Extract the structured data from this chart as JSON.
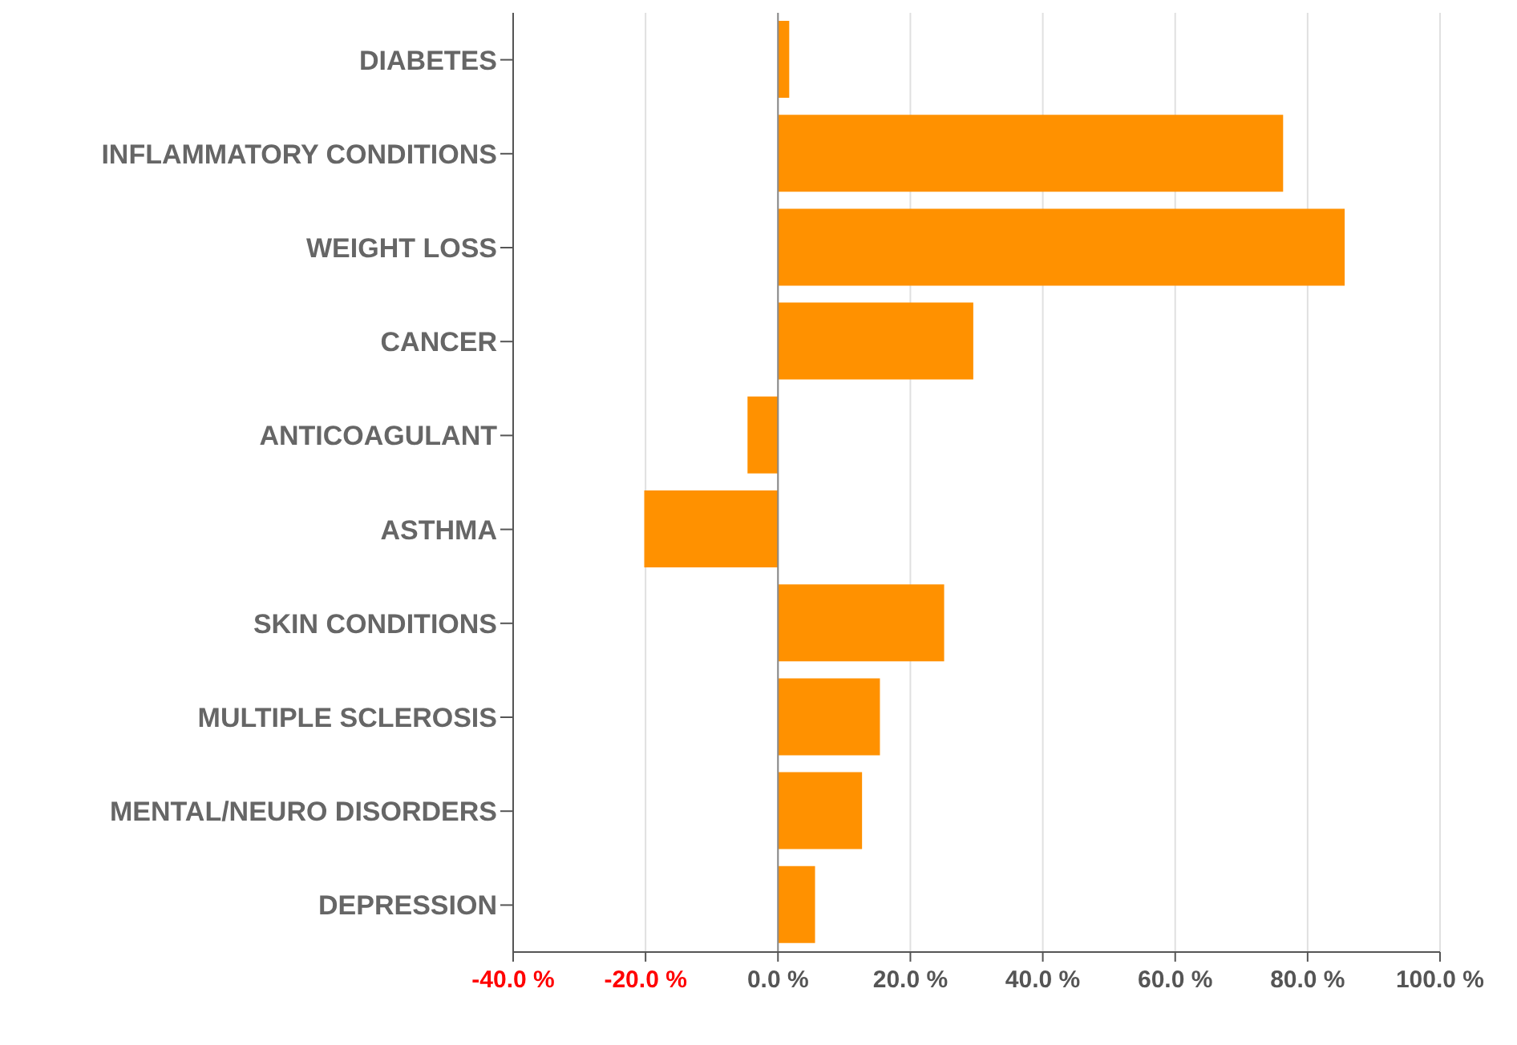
{
  "chart_data": {
    "type": "bar",
    "orientation": "horizontal",
    "categories": [
      "DIABETES",
      "INFLAMMATORY CONDITIONS",
      "WEIGHT LOSS",
      "CANCER",
      "ANTICOAGULANT",
      "ASTHMA",
      "SKIN CONDITIONS",
      "MULTIPLE SCLEROSIS",
      "MENTAL/NEURO DISORDERS",
      "DEPRESSION"
    ],
    "values": [
      1.7,
      76.3,
      85.6,
      29.5,
      -4.6,
      -20.2,
      25.1,
      15.4,
      12.7,
      5.6
    ],
    "color": "#ff9100",
    "xlim": [
      -40,
      100
    ],
    "xticks": [
      {
        "value": -40,
        "label": "-40.0 %"
      },
      {
        "value": -20,
        "label": "-20.0 %"
      },
      {
        "value": 0,
        "label": "0.0 %"
      },
      {
        "value": 20,
        "label": "20.0 %"
      },
      {
        "value": 40,
        "label": "40.0 %"
      },
      {
        "value": 60,
        "label": "60.0 %"
      },
      {
        "value": 80,
        "label": "80.0 %"
      },
      {
        "value": 100,
        "label": "100.0 %"
      }
    ],
    "ref_lines": [
      {
        "axis": "x",
        "value": 0,
        "color": "#888888"
      }
    ],
    "grid": "x"
  }
}
